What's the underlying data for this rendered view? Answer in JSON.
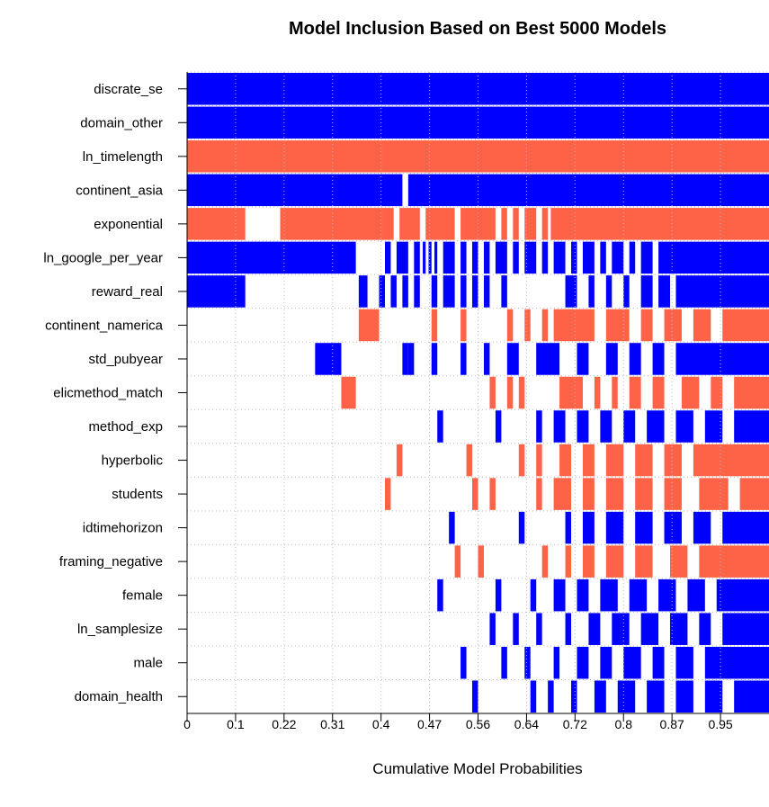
{
  "chart_data": {
    "type": "heatmap",
    "title": "Model Inclusion Based on Best  5000  Models",
    "xlabel": "Cumulative Model Probabilities",
    "ylabel": "",
    "xlim": [
      0,
      1
    ],
    "x_tick_labels": [
      "0",
      "0.1",
      "0.22",
      "0.31",
      "0.4",
      "0.47",
      "0.56",
      "0.64",
      "0.72",
      "0.8",
      "0.87",
      "0.95"
    ],
    "colors": {
      "positive": "#0000ff",
      "negative": "#ff6347",
      "excluded": "#ffffff",
      "grid": "#bbbbbb"
    },
    "variables": [
      {
        "name": "discrate_se",
        "sign": "positive",
        "inclusion": [
          [
            0,
            1
          ]
        ]
      },
      {
        "name": "domain_other",
        "sign": "positive",
        "inclusion": [
          [
            0,
            1
          ]
        ]
      },
      {
        "name": "ln_timelength",
        "sign": "negative",
        "inclusion": [
          [
            0,
            1
          ]
        ]
      },
      {
        "name": "continent_asia",
        "sign": "positive",
        "inclusion": [
          [
            0,
            0.37
          ],
          [
            0.38,
            1
          ]
        ]
      },
      {
        "name": "exponential",
        "sign": "negative",
        "inclusion": [
          [
            0,
            0.1
          ],
          [
            0.16,
            0.355
          ],
          [
            0.365,
            0.4
          ],
          [
            0.41,
            0.46
          ],
          [
            0.47,
            0.53
          ],
          [
            0.54,
            0.55
          ],
          [
            0.56,
            0.57
          ],
          [
            0.58,
            0.6
          ],
          [
            0.61,
            0.62
          ],
          [
            0.625,
            1
          ]
        ]
      },
      {
        "name": "ln_google_per_year",
        "sign": "positive",
        "inclusion": [
          [
            0,
            0.29
          ],
          [
            0.34,
            0.35
          ],
          [
            0.36,
            0.38
          ],
          [
            0.39,
            0.4
          ],
          [
            0.405,
            0.41
          ],
          [
            0.415,
            0.42
          ],
          [
            0.425,
            0.43
          ],
          [
            0.44,
            0.46
          ],
          [
            0.47,
            0.48
          ],
          [
            0.49,
            0.5
          ],
          [
            0.51,
            0.52
          ],
          [
            0.53,
            0.55
          ],
          [
            0.56,
            0.57
          ],
          [
            0.58,
            0.6
          ],
          [
            0.61,
            0.62
          ],
          [
            0.63,
            0.65
          ],
          [
            0.66,
            0.67
          ],
          [
            0.68,
            0.7
          ],
          [
            0.71,
            0.72
          ],
          [
            0.73,
            0.75
          ],
          [
            0.76,
            0.77
          ],
          [
            0.78,
            0.8
          ],
          [
            0.81,
            1
          ]
        ]
      },
      {
        "name": "reward_real",
        "sign": "positive",
        "inclusion": [
          [
            0,
            0.1
          ],
          [
            0.295,
            0.31
          ],
          [
            0.33,
            0.34
          ],
          [
            0.35,
            0.36
          ],
          [
            0.37,
            0.38
          ],
          [
            0.39,
            0.4
          ],
          [
            0.42,
            0.43
          ],
          [
            0.44,
            0.46
          ],
          [
            0.47,
            0.48
          ],
          [
            0.49,
            0.5
          ],
          [
            0.51,
            0.52
          ],
          [
            0.54,
            0.55
          ],
          [
            0.65,
            0.67
          ],
          [
            0.69,
            0.7
          ],
          [
            0.72,
            0.73
          ],
          [
            0.75,
            0.76
          ],
          [
            0.78,
            0.8
          ],
          [
            0.81,
            0.83
          ],
          [
            0.84,
            1
          ]
        ]
      },
      {
        "name": "continent_namerica",
        "sign": "negative",
        "inclusion": [
          [
            0.295,
            0.33
          ],
          [
            0.42,
            0.43
          ],
          [
            0.47,
            0.48
          ],
          [
            0.55,
            0.56
          ],
          [
            0.58,
            0.59
          ],
          [
            0.61,
            0.62
          ],
          [
            0.63,
            0.7
          ],
          [
            0.72,
            0.76
          ],
          [
            0.78,
            0.8
          ],
          [
            0.82,
            0.85
          ],
          [
            0.87,
            0.9
          ],
          [
            0.92,
            1
          ]
        ]
      },
      {
        "name": "std_pubyear",
        "sign": "positive",
        "inclusion": [
          [
            0.22,
            0.265
          ],
          [
            0.37,
            0.38
          ],
          [
            0.38,
            0.39
          ],
          [
            0.42,
            0.43
          ],
          [
            0.47,
            0.48
          ],
          [
            0.51,
            0.52
          ],
          [
            0.55,
            0.57
          ],
          [
            0.6,
            0.64
          ],
          [
            0.67,
            0.69
          ],
          [
            0.72,
            0.74
          ],
          [
            0.76,
            0.78
          ],
          [
            0.8,
            0.82
          ],
          [
            0.84,
            1
          ]
        ]
      },
      {
        "name": "elicmethod_match",
        "sign": "negative",
        "inclusion": [
          [
            0.265,
            0.29
          ],
          [
            0.52,
            0.53
          ],
          [
            0.55,
            0.56
          ],
          [
            0.57,
            0.58
          ],
          [
            0.64,
            0.68
          ],
          [
            0.7,
            0.71
          ],
          [
            0.73,
            0.74
          ],
          [
            0.76,
            0.78
          ],
          [
            0.8,
            0.82
          ],
          [
            0.85,
            0.88
          ],
          [
            0.9,
            0.92
          ],
          [
            0.94,
            1
          ]
        ]
      },
      {
        "name": "method_exp",
        "sign": "positive",
        "inclusion": [
          [
            0.43,
            0.44
          ],
          [
            0.53,
            0.54
          ],
          [
            0.6,
            0.61
          ],
          [
            0.63,
            0.65
          ],
          [
            0.67,
            0.69
          ],
          [
            0.71,
            0.73
          ],
          [
            0.75,
            0.77
          ],
          [
            0.79,
            0.82
          ],
          [
            0.84,
            0.87
          ],
          [
            0.89,
            0.92
          ],
          [
            0.94,
            1
          ]
        ]
      },
      {
        "name": "hyperbolic",
        "sign": "negative",
        "inclusion": [
          [
            0.36,
            0.37
          ],
          [
            0.48,
            0.49
          ],
          [
            0.57,
            0.58
          ],
          [
            0.6,
            0.61
          ],
          [
            0.64,
            0.66
          ],
          [
            0.68,
            0.7
          ],
          [
            0.72,
            0.75
          ],
          [
            0.77,
            0.8
          ],
          [
            0.82,
            0.85
          ],
          [
            0.87,
            1
          ]
        ]
      },
      {
        "name": "students",
        "sign": "negative",
        "inclusion": [
          [
            0.34,
            0.35
          ],
          [
            0.49,
            0.5
          ],
          [
            0.52,
            0.53
          ],
          [
            0.6,
            0.61
          ],
          [
            0.63,
            0.66
          ],
          [
            0.68,
            0.7
          ],
          [
            0.72,
            0.75
          ],
          [
            0.77,
            0.8
          ],
          [
            0.82,
            0.85
          ],
          [
            0.88,
            0.93
          ],
          [
            0.95,
            1
          ]
        ]
      },
      {
        "name": "idtimehorizon",
        "sign": "positive",
        "inclusion": [
          [
            0.45,
            0.46
          ],
          [
            0.57,
            0.58
          ],
          [
            0.65,
            0.66
          ],
          [
            0.68,
            0.7
          ],
          [
            0.72,
            0.75
          ],
          [
            0.77,
            0.8
          ],
          [
            0.82,
            0.85
          ],
          [
            0.87,
            0.9
          ],
          [
            0.92,
            1
          ]
        ]
      },
      {
        "name": "framing_negative",
        "sign": "negative",
        "inclusion": [
          [
            0.46,
            0.47
          ],
          [
            0.5,
            0.51
          ],
          [
            0.61,
            0.62
          ],
          [
            0.65,
            0.66
          ],
          [
            0.68,
            0.7
          ],
          [
            0.72,
            0.75
          ],
          [
            0.77,
            0.8
          ],
          [
            0.83,
            0.86
          ],
          [
            0.88,
            1
          ]
        ]
      },
      {
        "name": "female",
        "sign": "positive",
        "inclusion": [
          [
            0.43,
            0.44
          ],
          [
            0.53,
            0.54
          ],
          [
            0.59,
            0.6
          ],
          [
            0.63,
            0.65
          ],
          [
            0.67,
            0.69
          ],
          [
            0.71,
            0.74
          ],
          [
            0.76,
            0.79
          ],
          [
            0.81,
            0.84
          ],
          [
            0.86,
            0.89
          ],
          [
            0.91,
            1
          ]
        ]
      },
      {
        "name": "ln_samplesize",
        "sign": "positive",
        "inclusion": [
          [
            0.52,
            0.53
          ],
          [
            0.56,
            0.57
          ],
          [
            0.6,
            0.61
          ],
          [
            0.65,
            0.66
          ],
          [
            0.69,
            0.71
          ],
          [
            0.73,
            0.76
          ],
          [
            0.78,
            0.81
          ],
          [
            0.83,
            0.86
          ],
          [
            0.88,
            0.9
          ],
          [
            0.92,
            1
          ]
        ]
      },
      {
        "name": "male",
        "sign": "positive",
        "inclusion": [
          [
            0.47,
            0.48
          ],
          [
            0.54,
            0.55
          ],
          [
            0.58,
            0.59
          ],
          [
            0.63,
            0.64
          ],
          [
            0.67,
            0.69
          ],
          [
            0.71,
            0.73
          ],
          [
            0.75,
            0.78
          ],
          [
            0.8,
            0.82
          ],
          [
            0.84,
            0.87
          ],
          [
            0.89,
            1
          ]
        ]
      },
      {
        "name": "domain_health",
        "sign": "positive",
        "inclusion": [
          [
            0.49,
            0.5
          ],
          [
            0.59,
            0.6
          ],
          [
            0.62,
            0.63
          ],
          [
            0.66,
            0.67
          ],
          [
            0.7,
            0.72
          ],
          [
            0.74,
            0.77
          ],
          [
            0.79,
            0.82
          ],
          [
            0.84,
            0.87
          ],
          [
            0.89,
            0.92
          ],
          [
            0.94,
            1
          ]
        ]
      }
    ]
  }
}
